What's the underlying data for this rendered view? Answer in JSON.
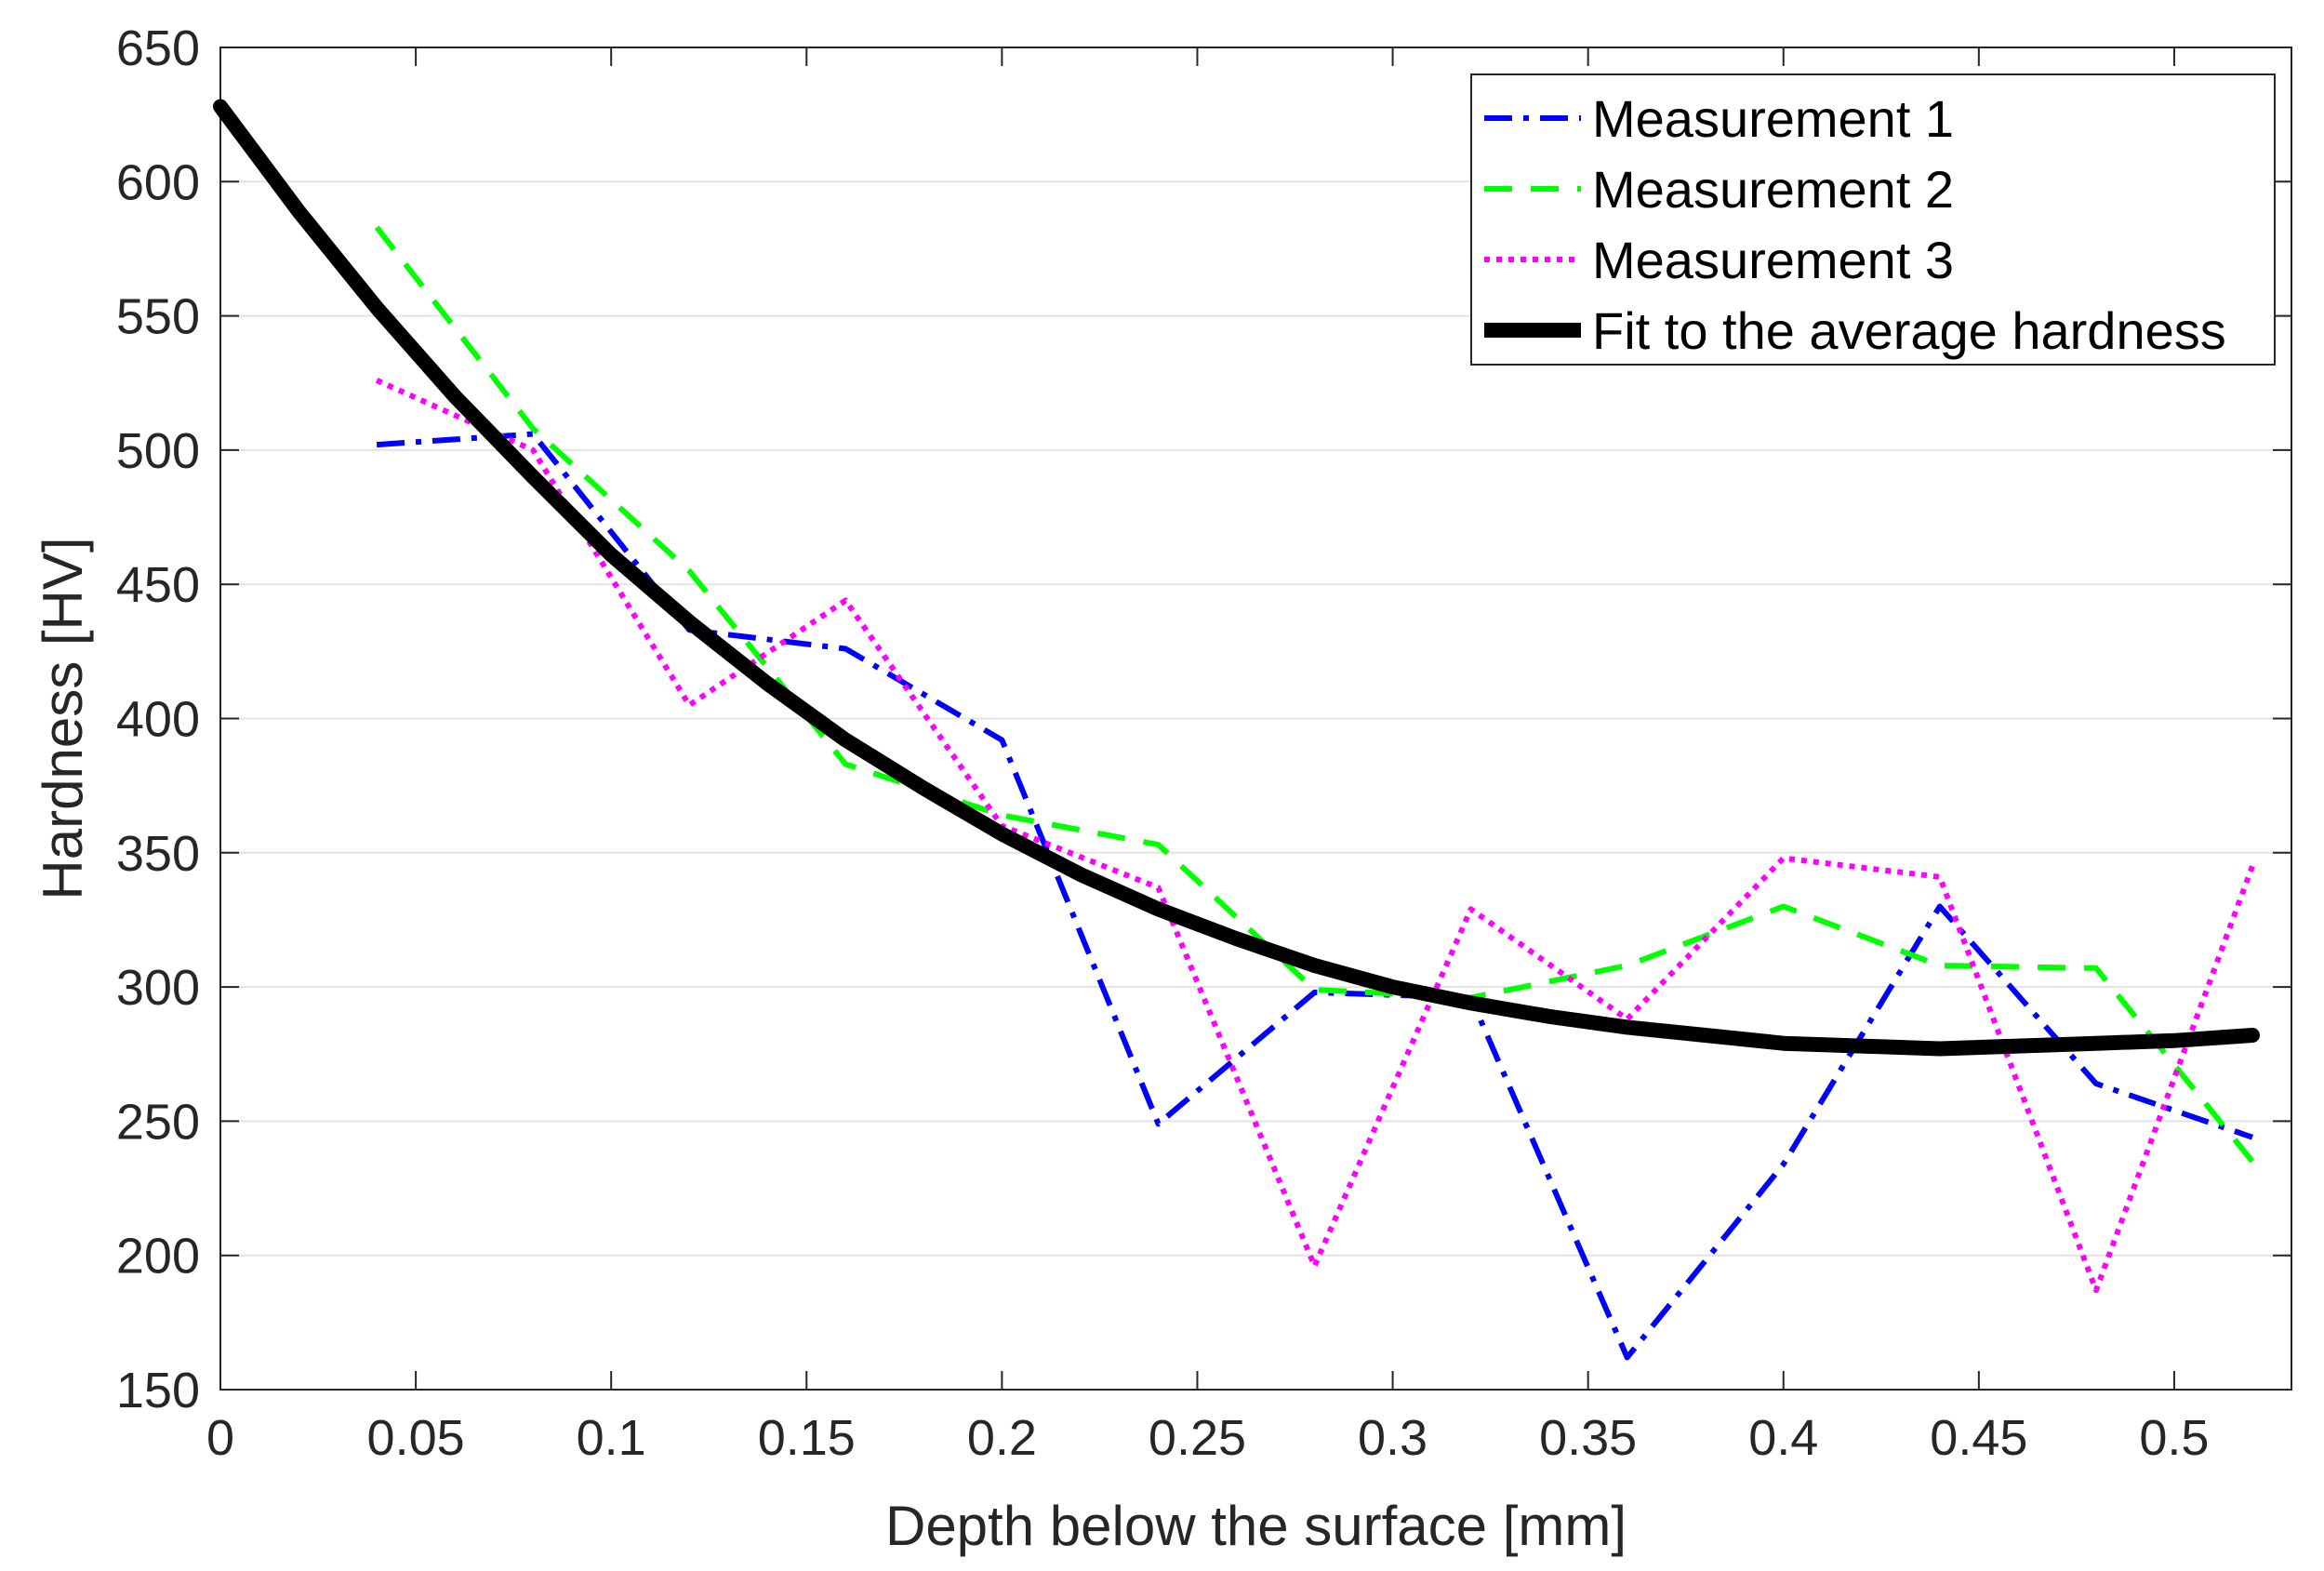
{
  "chart_data": {
    "type": "line",
    "title": "",
    "xlabel": "Depth below the surface [mm]",
    "ylabel": "Hardness [HV]",
    "xlim": [
      0,
      0.53
    ],
    "ylim": [
      150,
      650
    ],
    "xticks": [
      0,
      0.05,
      0.1,
      0.15,
      0.2,
      0.25,
      0.3,
      0.35,
      0.4,
      0.45,
      0.5
    ],
    "xtick_labels": [
      "0",
      "0.05",
      "0.1",
      "0.15",
      "0.2",
      "0.25",
      "0.3",
      "0.35",
      "0.4",
      "0.45",
      "0.5"
    ],
    "yticks": [
      150,
      200,
      250,
      300,
      350,
      400,
      450,
      500,
      550,
      600,
      650
    ],
    "ytick_labels": [
      "150",
      "200",
      "250",
      "300",
      "350",
      "400",
      "450",
      "500",
      "550",
      "600",
      "650"
    ],
    "grid": "horizontal",
    "legend_position": "top-right",
    "series": [
      {
        "name": "Measurement 1",
        "color": "#0000ff",
        "style": "dashdot",
        "x": [
          0.04,
          0.08,
          0.12,
          0.16,
          0.2,
          0.24,
          0.28,
          0.32,
          0.36,
          0.4,
          0.44,
          0.48,
          0.52
        ],
        "y": [
          502,
          506,
          433,
          426,
          392,
          249,
          298,
          296,
          162,
          234,
          330,
          264,
          244
        ]
      },
      {
        "name": "Measurement 2",
        "color": "#00ff00",
        "style": "dashed",
        "x": [
          0.04,
          0.08,
          0.12,
          0.16,
          0.2,
          0.24,
          0.28,
          0.32,
          0.36,
          0.4,
          0.44,
          0.48,
          0.52
        ],
        "y": [
          583,
          508,
          455,
          383,
          364,
          353,
          299,
          296,
          308,
          330,
          308,
          307,
          235
        ]
      },
      {
        "name": "Measurement 3",
        "color": "#ff00ff",
        "style": "dotted",
        "x": [
          0.04,
          0.08,
          0.12,
          0.16,
          0.2,
          0.24,
          0.28,
          0.32,
          0.36,
          0.4,
          0.44,
          0.48,
          0.52
        ],
        "y": [
          526,
          500,
          405,
          444,
          360,
          337,
          196,
          329,
          288,
          348,
          341,
          187,
          345
        ]
      },
      {
        "name": "Fit to the average hardness",
        "color": "#000000",
        "style": "solid-thick",
        "x": [
          0,
          0.02,
          0.04,
          0.06,
          0.08,
          0.1,
          0.12,
          0.14,
          0.16,
          0.18,
          0.2,
          0.22,
          0.24,
          0.26,
          0.28,
          0.3,
          0.32,
          0.34,
          0.36,
          0.38,
          0.4,
          0.42,
          0.44,
          0.46,
          0.48,
          0.5,
          0.52
        ],
        "y": [
          628,
          589,
          553,
          520,
          490,
          461,
          436,
          413,
          392,
          374,
          357,
          342,
          329,
          318,
          308,
          300,
          294,
          289,
          285,
          282,
          279,
          278,
          277,
          278,
          279,
          280,
          282
        ]
      }
    ]
  }
}
